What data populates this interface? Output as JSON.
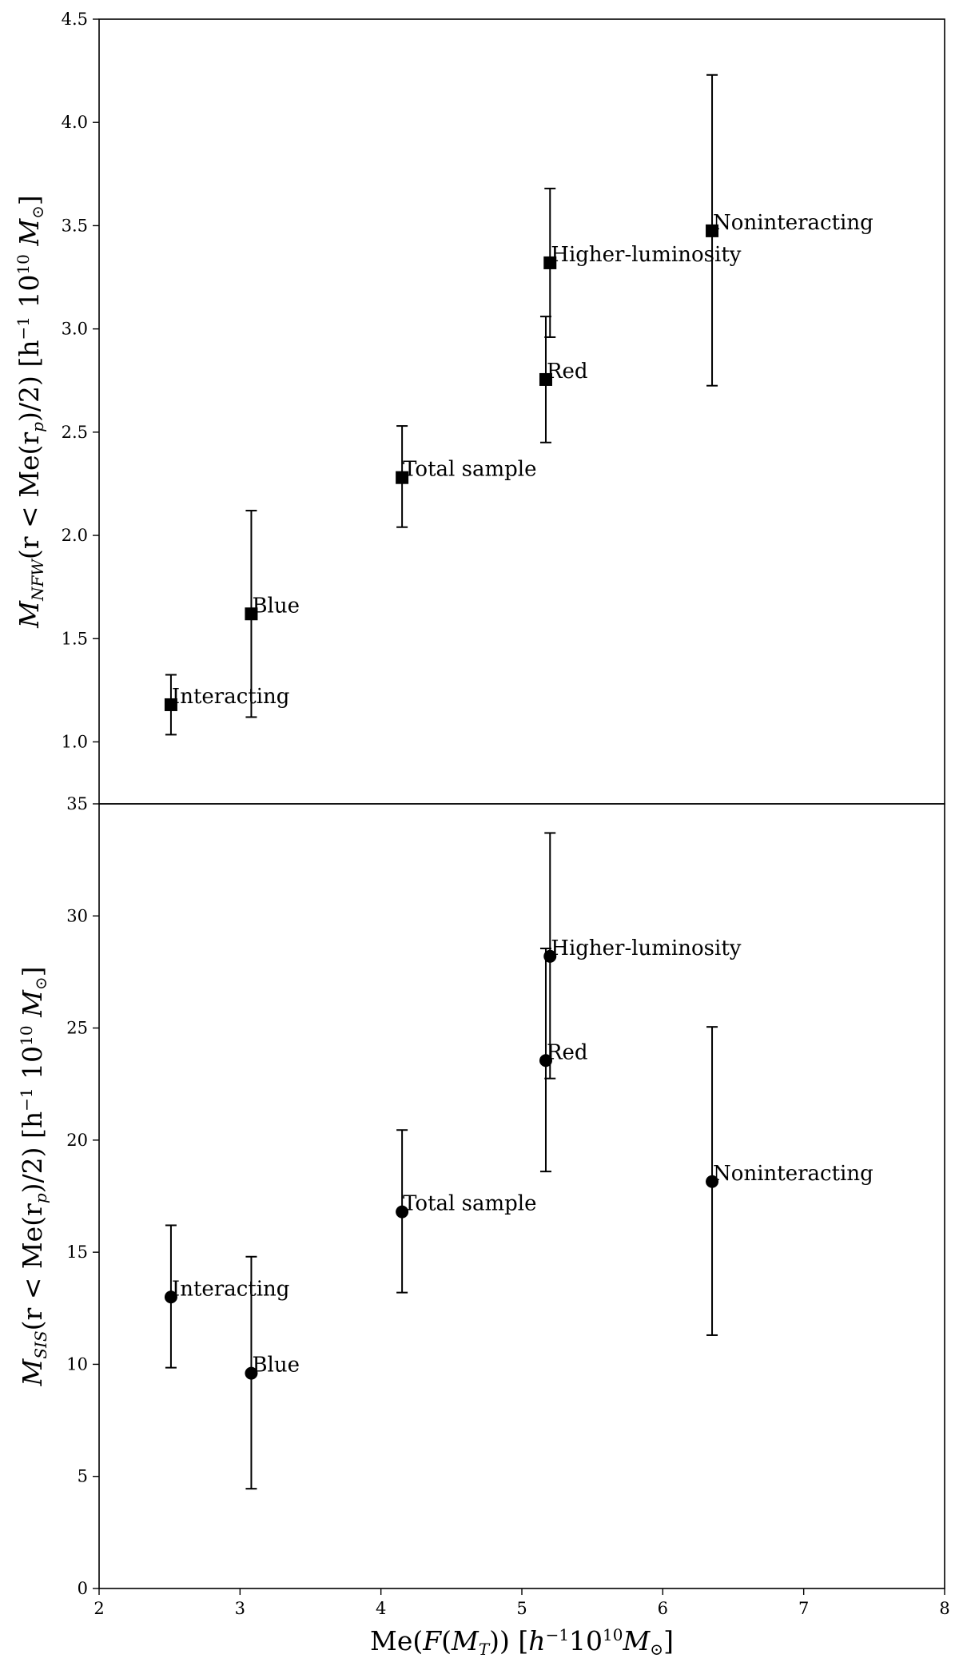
{
  "chart_data": [
    {
      "type": "scatter",
      "name": "nfw",
      "marker": "square",
      "ylabel": "M_NFW(r < Me(r_p)/2) [h^-1 10^10 M_⊙]",
      "ylabel_parts": {
        "main": "M",
        "sub": "NFW",
        "paren": "(r < Me(r",
        "sub2": "p",
        "paren2": ")/2) [h",
        "sup": "−1",
        "ten": " 10",
        "sup2": "10",
        "m": " M",
        "msun": "⊙",
        "close": "]"
      },
      "xlim": [
        2,
        8
      ],
      "ylim": [
        0.7,
        4.5
      ],
      "yticks": [
        "1.0",
        "1.5",
        "2.0",
        "2.5",
        "3.0",
        "3.5",
        "4.0",
        "4.5"
      ],
      "ytick_values": [
        1.0,
        1.5,
        2.0,
        2.5,
        3.0,
        3.5,
        4.0,
        4.5
      ],
      "points": [
        {
          "label": "Interacting",
          "x": 2.51,
          "y": 1.18,
          "ylo": 1.035,
          "yhi": 1.325
        },
        {
          "label": "Blue",
          "x": 3.08,
          "y": 1.62,
          "ylo": 1.12,
          "yhi": 2.12
        },
        {
          "label": "Total sample",
          "x": 4.15,
          "y": 2.28,
          "ylo": 2.04,
          "yhi": 2.53
        },
        {
          "label": "Red",
          "x": 5.17,
          "y": 2.755,
          "ylo": 2.45,
          "yhi": 3.06
        },
        {
          "label": "Higher-luminosity",
          "x": 5.2,
          "y": 3.32,
          "ylo": 2.96,
          "yhi": 3.68
        },
        {
          "label": "Noninteracting",
          "x": 6.35,
          "y": 3.475,
          "ylo": 2.725,
          "yhi": 4.23
        }
      ]
    },
    {
      "type": "scatter",
      "name": "sis",
      "marker": "circle",
      "ylabel": "M_SIS(r < Me(r_p)/2) [h^-1 10^10 M_⊙]",
      "ylabel_parts": {
        "main": "M",
        "sub": "SIS",
        "paren": "(r < Me(r",
        "sub2": "p",
        "paren2": ")/2) [h",
        "sup": "−1",
        "ten": " 10",
        "sup2": "10",
        "m": " M",
        "msun": "⊙",
        "close": "]"
      },
      "xlabel": "Me(F(M_T)) [h^-1 10^10 M_⊙]",
      "xlabel_parts": {
        "a": "Me(",
        "f": "F",
        "b": "(",
        "m": "M",
        "sub": "T",
        "c": ")) [",
        "h": "h",
        "sup": "−1",
        "ten": "10",
        "sup2": "10",
        "m2": "M",
        "msun": "⊙",
        "d": "]"
      },
      "xlim": [
        2,
        8
      ],
      "ylim": [
        0,
        35
      ],
      "xticks": [
        "2",
        "3",
        "4",
        "5",
        "6",
        "7",
        "8"
      ],
      "xtick_values": [
        2,
        3,
        4,
        5,
        6,
        7,
        8
      ],
      "yticks": [
        "0",
        "5",
        "10",
        "15",
        "20",
        "25",
        "30",
        "35"
      ],
      "ytick_values": [
        0,
        5,
        10,
        15,
        20,
        25,
        30,
        35
      ],
      "points": [
        {
          "label": "Interacting",
          "x": 2.51,
          "y": 13.0,
          "ylo": 9.85,
          "yhi": 16.2
        },
        {
          "label": "Blue",
          "x": 3.08,
          "y": 9.6,
          "ylo": 4.45,
          "yhi": 14.8
        },
        {
          "label": "Total sample",
          "x": 4.15,
          "y": 16.8,
          "ylo": 13.2,
          "yhi": 20.45
        },
        {
          "label": "Red",
          "x": 5.17,
          "y": 23.55,
          "ylo": 18.6,
          "yhi": 28.55
        },
        {
          "label": "Higher-luminosity",
          "x": 5.2,
          "y": 28.2,
          "ylo": 22.75,
          "yhi": 33.7
        },
        {
          "label": "Noninteracting",
          "x": 6.35,
          "y": 18.15,
          "ylo": 11.3,
          "yhi": 25.05
        }
      ]
    }
  ]
}
